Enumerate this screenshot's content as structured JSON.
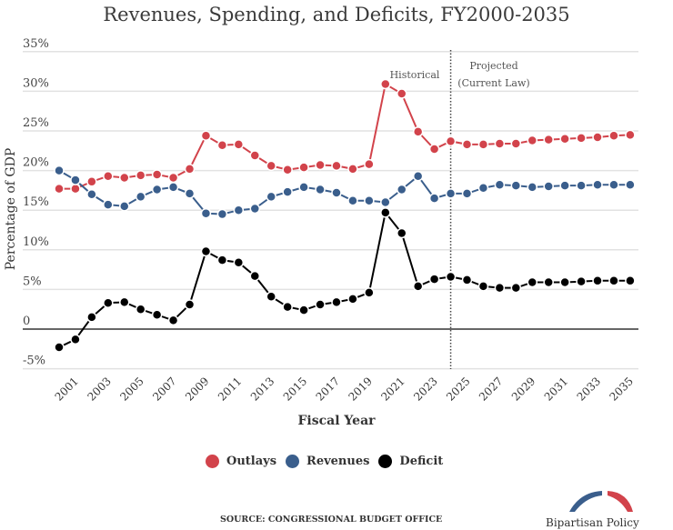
{
  "chart_data": {
    "type": "line",
    "title": "Revenues, Spending, and Deficits, FY2000-2035",
    "xlabel": "Fiscal Year",
    "ylabel": "Percentage of GDP",
    "ylim": [
      -5,
      35
    ],
    "yticks": [
      -5,
      0,
      5,
      10,
      15,
      20,
      25,
      30,
      35
    ],
    "ytick_labels": [
      "-5%",
      "0",
      "5%",
      "10%",
      "15%",
      "20%",
      "25%",
      "30%",
      "35%"
    ],
    "xtick_labels": [
      "2001",
      "2003",
      "2005",
      "2007",
      "2009",
      "2011",
      "2013",
      "2015",
      "2017",
      "2019",
      "2021",
      "2023",
      "2025",
      "2027",
      "2029",
      "2031",
      "2033",
      "2035"
    ],
    "grid": true,
    "legend": "bottom",
    "x": [
      2000,
      2001,
      2002,
      2003,
      2004,
      2005,
      2006,
      2007,
      2008,
      2009,
      2010,
      2011,
      2012,
      2013,
      2014,
      2015,
      2016,
      2017,
      2018,
      2019,
      2020,
      2021,
      2022,
      2023,
      2024,
      2025,
      2026,
      2027,
      2028,
      2029,
      2030,
      2031,
      2032,
      2033,
      2034,
      2035
    ],
    "series": [
      {
        "name": "Outlays",
        "color": "#d2434b",
        "values": [
          17.7,
          17.7,
          18.6,
          19.3,
          19.1,
          19.4,
          19.5,
          19.1,
          20.2,
          24.4,
          23.2,
          23.3,
          21.9,
          20.6,
          20.1,
          20.4,
          20.7,
          20.6,
          20.2,
          20.8,
          30.9,
          29.7,
          24.9,
          22.7,
          23.7,
          23.3,
          23.3,
          23.4,
          23.4,
          23.8,
          23.9,
          24.0,
          24.1,
          24.2,
          24.4,
          24.5
        ]
      },
      {
        "name": "Revenues",
        "color": "#3a5e8c",
        "values": [
          20.0,
          18.8,
          17.0,
          15.7,
          15.5,
          16.7,
          17.6,
          17.9,
          17.1,
          14.6,
          14.5,
          15.0,
          15.2,
          16.7,
          17.3,
          17.9,
          17.6,
          17.2,
          16.2,
          16.2,
          16.0,
          17.6,
          19.3,
          16.5,
          17.1,
          17.1,
          17.8,
          18.2,
          18.1,
          17.9,
          18.0,
          18.1,
          18.1,
          18.2,
          18.2,
          18.2
        ]
      },
      {
        "name": "Deficit",
        "color": "#000000",
        "values": [
          -2.3,
          -1.3,
          1.5,
          3.3,
          3.4,
          2.5,
          1.8,
          1.1,
          3.1,
          9.8,
          8.7,
          8.4,
          6.7,
          4.1,
          2.8,
          2.4,
          3.1,
          3.4,
          3.8,
          4.6,
          14.7,
          12.1,
          5.4,
          6.3,
          6.6,
          6.2,
          5.4,
          5.2,
          5.2,
          5.9,
          5.9,
          5.9,
          6.0,
          6.1,
          6.1,
          6.1
        ]
      }
    ],
    "divider": {
      "x": 2024,
      "left_label": "Historical",
      "right_label_line1": "Projected",
      "right_label_line2": "(Current Law)"
    }
  },
  "source": "SOURCE: CONGRESSIONAL BUDGET OFFICE",
  "logo_text": "Bipartisan Policy Center",
  "logo_colors": {
    "left": "#3a5e8c",
    "right": "#d2434b"
  }
}
